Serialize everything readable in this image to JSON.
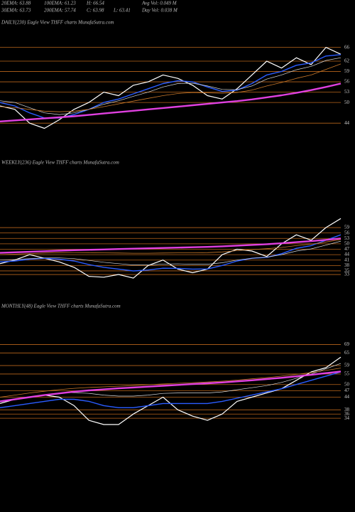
{
  "header": [
    [
      "20EMA: 63.88",
      "100EMA: 61.23",
      "H: 66.54",
      "Avg Vol: 0.049 M"
    ],
    [
      "30EMA: 63.73",
      "200EMA: 57.74",
      "C: 63.98",
      "L: 63.41",
      "Day Vol: 0.038 M"
    ]
  ],
  "chart_data": [
    {
      "type": "line",
      "title": "DAILY(230) Eagle  View  THFF charts MunafaSutra.com",
      "ylim": [
        39.5,
        71.5
      ],
      "yticks": [
        66,
        62,
        59,
        56,
        53,
        50,
        44
      ],
      "grid": true,
      "series": [
        {
          "color": "#ffffff",
          "values": [
            49,
            48,
            44,
            42.5,
            45,
            48,
            50,
            53,
            52,
            55,
            56,
            58,
            57,
            55,
            52,
            51,
            54,
            58,
            62,
            60,
            63,
            61,
            66,
            64
          ]
        },
        {
          "color": "#2a5cff",
          "values": [
            50,
            49,
            47,
            45.5,
            45.5,
            46.5,
            48,
            50,
            51,
            52.5,
            54,
            55.5,
            56.3,
            56,
            54.5,
            53.2,
            53.6,
            55.5,
            58,
            59,
            60.8,
            61.5,
            63.5,
            63.9
          ]
        },
        {
          "color": "#dddddd",
          "values": [
            50.5,
            50,
            48.5,
            47,
            46.5,
            47,
            48,
            49.5,
            50.5,
            51.8,
            53,
            54.5,
            55.5,
            55.6,
            54.8,
            53.8,
            53.7,
            54.8,
            56.8,
            58,
            59.5,
            60.5,
            62.2,
            63
          ]
        },
        {
          "color": "#c8782a",
          "values": [
            48.8,
            48.5,
            48,
            47.5,
            47.3,
            47.5,
            48,
            48.8,
            49.6,
            50.4,
            51.2,
            52,
            52.6,
            52.9,
            52.8,
            52.7,
            52.9,
            53.6,
            54.8,
            55.8,
            57,
            58,
            59.6,
            61.2
          ]
        },
        {
          "color": "#e040e0",
          "values": [
            44.5,
            44.8,
            45.1,
            45.4,
            45.7,
            46,
            46.4,
            46.8,
            47.2,
            47.6,
            48,
            48.4,
            48.8,
            49.2,
            49.6,
            50,
            50.4,
            50.9,
            51.5,
            52.1,
            52.8,
            53.6,
            54.5,
            55.5
          ]
        }
      ]
    },
    {
      "type": "line",
      "title": "WEEKLY(236) Eagle  View  THFF charts MunafaSutra.com",
      "ylim": [
        27.5,
        92.5
      ],
      "yticks": [
        59,
        56,
        53,
        50,
        47,
        44,
        41,
        38,
        35,
        33
      ],
      "grid": true,
      "series": [
        {
          "color": "#ffffff",
          "values": [
            39,
            41,
            44,
            42,
            40,
            37,
            32,
            31.5,
            33,
            31,
            38,
            41,
            36,
            34,
            36,
            44,
            47,
            46,
            43,
            50,
            55,
            52,
            59,
            64
          ]
        },
        {
          "color": "#2a5cff",
          "values": [
            40,
            40.5,
            41.5,
            42,
            41.5,
            40.5,
            38.5,
            37,
            36,
            35,
            35.5,
            36.5,
            36.4,
            36,
            36.1,
            38,
            40.5,
            42,
            42.5,
            44.5,
            47.5,
            49,
            52,
            55
          ]
        },
        {
          "color": "#dddddd",
          "values": [
            41,
            41.3,
            41.8,
            42.2,
            42.2,
            41.8,
            40.8,
            39.8,
            39,
            38.3,
            38.3,
            38.8,
            38.9,
            38.7,
            38.7,
            39.5,
            41,
            42,
            42.6,
            44,
            46,
            47.2,
            49.3,
            51.5
          ]
        },
        {
          "color": "#c8782a",
          "values": [
            44,
            44.3,
            44.6,
            44.9,
            45.1,
            45.2,
            45.1,
            45,
            44.9,
            44.8,
            44.8,
            44.9,
            45,
            45,
            45.1,
            45.5,
            46.2,
            46.8,
            47.3,
            48,
            49,
            49.8,
            51,
            52.4
          ]
        },
        {
          "color": "#e040e0",
          "values": [
            45,
            45.3,
            45.6,
            45.9,
            46.2,
            46.5,
            46.7,
            46.9,
            47.1,
            47.3,
            47.5,
            47.7,
            47.9,
            48.1,
            48.3,
            48.6,
            49,
            49.4,
            49.8,
            50.3,
            50.9,
            51.5,
            52.2,
            53
          ]
        }
      ]
    },
    {
      "type": "line",
      "title": "MONTHLY(48) Eagle  View  THFF charts MunafaSutra.com",
      "ylim": [
        30,
        84
      ],
      "yticks": [
        69,
        65,
        59,
        55,
        50,
        47,
        44,
        38,
        36,
        34
      ],
      "grid": true,
      "series": [
        {
          "color": "#ffffff",
          "values": [
            41,
            43,
            44,
            45,
            44,
            40,
            33,
            31,
            31,
            36,
            40,
            44,
            38,
            35,
            33,
            36,
            42,
            44,
            46,
            48,
            52,
            56,
            58,
            63
          ]
        },
        {
          "color": "#2a5cff",
          "values": [
            39,
            40,
            41,
            42,
            43,
            43,
            42,
            40,
            39,
            39,
            40,
            41,
            41,
            41,
            41,
            42,
            43.5,
            45,
            46.5,
            48,
            50,
            52,
            54,
            56
          ]
        },
        {
          "color": "#dddddd",
          "values": [
            42,
            43,
            44,
            45,
            46,
            46.2,
            45.8,
            45,
            44.5,
            44.5,
            45,
            45.8,
            46,
            46,
            46,
            46.5,
            47.5,
            48.5,
            49.5,
            51,
            53,
            55,
            57.5,
            60
          ]
        },
        {
          "color": "#c8782a",
          "values": [
            44,
            45,
            46,
            46.8,
            47.6,
            48.2,
            48.6,
            48.9,
            49.2,
            49.5,
            49.9,
            50.3,
            50.6,
            50.9,
            51.2,
            51.6,
            52.1,
            52.7,
            53.3,
            54,
            54.8,
            55.7,
            56.7,
            57.8
          ]
        },
        {
          "color": "#e040e0",
          "values": [
            42,
            43,
            44,
            45,
            45.8,
            46.6,
            47.2,
            47.7,
            48.2,
            48.6,
            49,
            49.4,
            49.8,
            50.2,
            50.6,
            51,
            51.5,
            52,
            52.6,
            53.2,
            53.9,
            54.6,
            55.4,
            56.2
          ]
        }
      ]
    }
  ]
}
